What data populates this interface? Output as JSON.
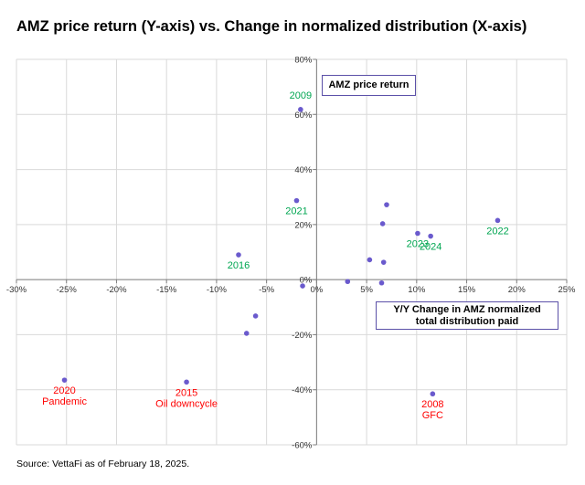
{
  "title": "AMZ price return (Y-axis) vs. Change in normalized distribution (X-axis)",
  "source": "Source: VettaFi as of February 18, 2025.",
  "chart_data": {
    "type": "scatter",
    "title": "AMZ price return (Y-axis) vs. Change in normalized distribution (X-axis)",
    "xlabel": "Y/Y Change in AMZ normalized total distribution paid",
    "ylabel": "AMZ price return",
    "xlim": [
      -30,
      25
    ],
    "ylim": [
      -60,
      80
    ],
    "x_ticks": [
      "-30%",
      "-25%",
      "-20%",
      "-15%",
      "-10%",
      "-5%",
      "0%",
      "5%",
      "10%",
      "15%",
      "20%",
      "25%"
    ],
    "y_ticks": [
      "80%",
      "60%",
      "40%",
      "20%",
      "0%",
      "-20%",
      "-40%",
      "-60%"
    ],
    "grid": true,
    "marker_color": "#6a5acd",
    "points": [
      {
        "x": -25.2,
        "y": -36.5,
        "label": "2020\nPandemic",
        "label_color": "#ff0000"
      },
      {
        "x": -13.0,
        "y": -37.2,
        "label": "2015\nOil downcycle",
        "label_color": "#ff0000"
      },
      {
        "x": -7.8,
        "y": 9.0,
        "label": "2016",
        "label_color": "#00a651"
      },
      {
        "x": -7.0,
        "y": -19.5,
        "label": ""
      },
      {
        "x": -6.1,
        "y": -13.2,
        "label": ""
      },
      {
        "x": -2.0,
        "y": 28.7,
        "label": "2021",
        "label_color": "#00a651"
      },
      {
        "x": -1.6,
        "y": 61.8,
        "label": "2009",
        "label_color": "#00a651"
      },
      {
        "x": -1.4,
        "y": -2.3,
        "label": ""
      },
      {
        "x": 3.1,
        "y": -0.7,
        "label": ""
      },
      {
        "x": 5.3,
        "y": 7.2,
        "label": ""
      },
      {
        "x": 6.5,
        "y": -1.2,
        "label": ""
      },
      {
        "x": 6.6,
        "y": 20.3,
        "label": ""
      },
      {
        "x": 6.7,
        "y": 6.3,
        "label": ""
      },
      {
        "x": 7.0,
        "y": 27.2,
        "label": ""
      },
      {
        "x": 10.1,
        "y": 16.8,
        "label": "2023",
        "label_color": "#00a651"
      },
      {
        "x": 11.4,
        "y": 15.8,
        "label": "2024",
        "label_color": "#00a651"
      },
      {
        "x": 11.6,
        "y": -41.5,
        "label": "2008\nGFC",
        "label_color": "#ff0000"
      },
      {
        "x": 18.1,
        "y": 21.5,
        "label": "2022",
        "label_color": "#00a651"
      }
    ]
  },
  "legend_boxes": {
    "y_title": "AMZ price return",
    "x_title": "Y/Y Change in AMZ normalized total distribution paid"
  }
}
